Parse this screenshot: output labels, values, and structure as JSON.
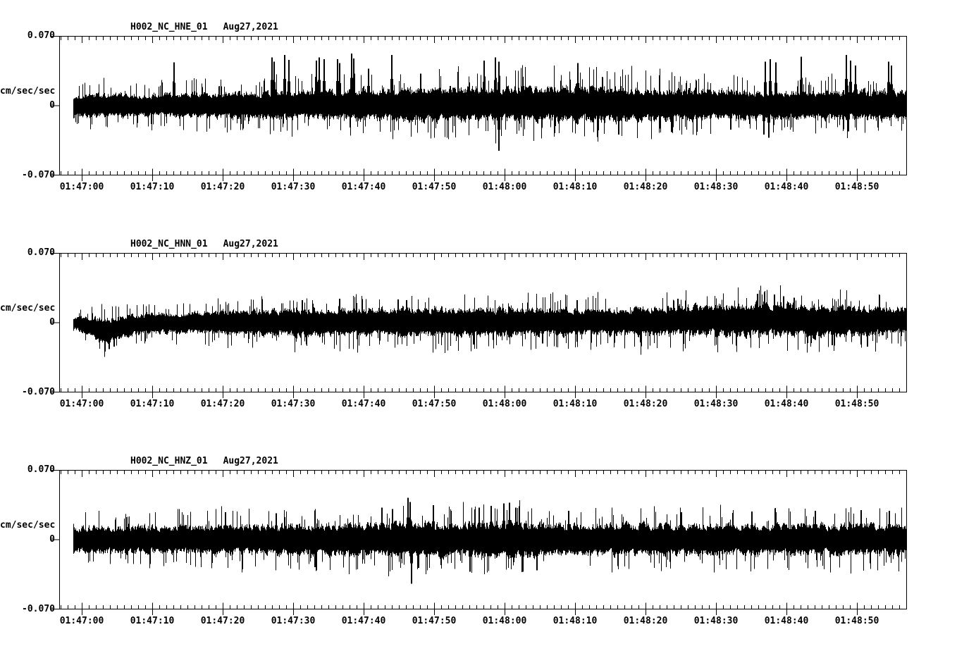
{
  "colors": {
    "background": "#ffffff",
    "trace": "#000000",
    "text": "#000000"
  },
  "chart_data": {
    "type": "line",
    "subtype": "seismogram-3-component",
    "ylabel": "cm/sec/sec",
    "ylim": [
      -0.07,
      0.07
    ],
    "y_tick_labels": [
      "0.070",
      "0",
      "-0.070"
    ],
    "y_tick_values": [
      0.07,
      0,
      -0.07
    ],
    "x_tick_labels": [
      "01:47:00",
      "01:47:10",
      "01:47:20",
      "01:47:30",
      "01:47:40",
      "01:47:50",
      "01:48:00",
      "01:48:10",
      "01:48:20",
      "01:48:30",
      "01:48:40",
      "01:48:50"
    ],
    "x_major_interval_sec": 10,
    "x_minor_interval_sec": 1,
    "x_range_sec": [
      -3,
      117
    ],
    "data_span_sec": [
      -1.2,
      117.1
    ],
    "grid": false,
    "legend": "none",
    "panels": [
      {
        "title_station": "H002_NC_HNE_01",
        "title_date": "Aug27,2021",
        "seed": 101,
        "envelope": [
          [
            -1.2,
            0.013
          ],
          [
            10,
            0.013
          ],
          [
            20,
            0.014
          ],
          [
            30,
            0.015
          ],
          [
            40,
            0.017
          ],
          [
            50,
            0.018
          ],
          [
            60,
            0.019
          ],
          [
            70,
            0.019
          ],
          [
            80,
            0.018
          ],
          [
            90,
            0.016
          ],
          [
            100,
            0.015
          ],
          [
            110,
            0.016
          ],
          [
            117.1,
            0.016
          ]
        ],
        "bias": [
          [
            -1.2,
            0
          ],
          [
            50,
            0.001
          ],
          [
            65,
            0.002
          ],
          [
            80,
            0.001
          ],
          [
            117.1,
            0
          ]
        ],
        "spikes": [
          [
            13.0,
            0.054
          ],
          [
            26.9,
            0.06
          ],
          [
            27.2,
            0.055
          ],
          [
            28.7,
            0.063
          ],
          [
            29.3,
            0.057
          ],
          [
            33.2,
            0.056
          ],
          [
            33.6,
            0.06
          ],
          [
            34.3,
            0.058
          ],
          [
            36.2,
            0.058
          ],
          [
            36.5,
            0.053
          ],
          [
            38.2,
            0.065
          ],
          [
            38.5,
            0.059
          ],
          [
            40.6,
            0.046
          ],
          [
            43.9,
            0.063
          ],
          [
            48.0,
            0.04
          ],
          [
            57.0,
            0.056
          ],
          [
            58.6,
            0.06
          ],
          [
            59.1,
            0.055
          ],
          [
            59.1,
            -0.056
          ],
          [
            70.3,
            0.053
          ],
          [
            76.1,
            -0.036
          ],
          [
            83.6,
            -0.033
          ],
          [
            92.0,
            -0.03
          ],
          [
            96.7,
            -0.036
          ],
          [
            96.9,
            0.055
          ],
          [
            97.4,
            -0.04
          ],
          [
            97.6,
            0.058
          ],
          [
            98.4,
            0.054
          ],
          [
            102.0,
            0.061
          ],
          [
            108.4,
            0.063
          ],
          [
            108.7,
            -0.032
          ],
          [
            109.0,
            0.056
          ],
          [
            109.7,
            0.05
          ],
          [
            114.4,
            0.055
          ],
          [
            114.8,
            0.05
          ]
        ]
      },
      {
        "title_station": "H002_NC_HNN_01",
        "title_date": "Aug27,2021",
        "seed": 202,
        "envelope": [
          [
            -1.2,
            0.007
          ],
          [
            0.5,
            0.009
          ],
          [
            2,
            0.013
          ],
          [
            6,
            0.013
          ],
          [
            9,
            0.011
          ],
          [
            15,
            0.012
          ],
          [
            25,
            0.014
          ],
          [
            35,
            0.015
          ],
          [
            45,
            0.016
          ],
          [
            60,
            0.015
          ],
          [
            75,
            0.015
          ],
          [
            85,
            0.016
          ],
          [
            95,
            0.018
          ],
          [
            101,
            0.018
          ],
          [
            106,
            0.016
          ],
          [
            117.1,
            0.015
          ]
        ],
        "bias": [
          [
            -1.2,
            0
          ],
          [
            1,
            -0.003
          ],
          [
            2.5,
            -0.008
          ],
          [
            4.5,
            -0.007
          ],
          [
            6.5,
            -0.003
          ],
          [
            9,
            -0.001
          ],
          [
            15,
            0
          ],
          [
            80,
            0.001
          ],
          [
            90,
            0.003
          ],
          [
            100,
            0.003
          ],
          [
            107,
            0.001
          ],
          [
            117.1,
            0.002
          ]
        ],
        "spikes": [
          [
            3.2,
            -0.036
          ],
          [
            3.8,
            -0.033
          ],
          [
            4.5,
            -0.03
          ],
          [
            31.2,
            0.028
          ],
          [
            36.5,
            0.03
          ],
          [
            44.8,
            0.029
          ],
          [
            46.0,
            0.028
          ],
          [
            55.5,
            -0.027
          ],
          [
            65.3,
            -0.026
          ],
          [
            70.2,
            0.028
          ],
          [
            84.5,
            0.03
          ],
          [
            95.8,
            0.036
          ],
          [
            96.8,
            0.038
          ],
          [
            98.2,
            0.035
          ],
          [
            99.5,
            0.033
          ],
          [
            101.0,
            0.031
          ],
          [
            106.4,
            -0.028
          ],
          [
            111.4,
            -0.03
          ]
        ]
      },
      {
        "title_station": "H002_NC_HNZ_01",
        "title_date": "Aug27,2021",
        "seed": 303,
        "envelope": [
          [
            -1.2,
            0.014
          ],
          [
            5,
            0.015
          ],
          [
            15,
            0.015
          ],
          [
            25,
            0.016
          ],
          [
            35,
            0.017
          ],
          [
            42,
            0.018
          ],
          [
            46,
            0.019
          ],
          [
            52,
            0.018
          ],
          [
            58,
            0.02
          ],
          [
            62,
            0.019
          ],
          [
            66,
            0.016
          ],
          [
            72,
            0.017
          ],
          [
            85,
            0.017
          ],
          [
            100,
            0.017
          ],
          [
            110,
            0.017
          ],
          [
            117.1,
            0.016
          ]
        ],
        "bias": [
          [
            -1.2,
            0
          ]
        ],
        "spikes": [
          [
            20.3,
            0.034
          ],
          [
            27.5,
            0.033
          ],
          [
            33.0,
            -0.034
          ],
          [
            42.5,
            0.04
          ],
          [
            44.0,
            0.038
          ],
          [
            46.2,
            0.052
          ],
          [
            46.5,
            0.047
          ],
          [
            46.7,
            -0.055
          ],
          [
            47.7,
            -0.035
          ],
          [
            49.8,
            0.043
          ],
          [
            52.3,
            0.036
          ],
          [
            55.0,
            -0.04
          ],
          [
            56.3,
            0.04
          ],
          [
            58.0,
            0.042
          ],
          [
            59.8,
            0.045
          ],
          [
            60.6,
            0.046
          ],
          [
            61.5,
            0.04
          ],
          [
            62.5,
            -0.04
          ],
          [
            64.5,
            -0.038
          ],
          [
            69.0,
            0.036
          ],
          [
            76.0,
            -0.033
          ],
          [
            85.0,
            0.034
          ],
          [
            95.0,
            0.035
          ],
          [
            104.0,
            0.036
          ],
          [
            110.5,
            0.037
          ],
          [
            114.5,
            0.036
          ]
        ]
      }
    ]
  }
}
